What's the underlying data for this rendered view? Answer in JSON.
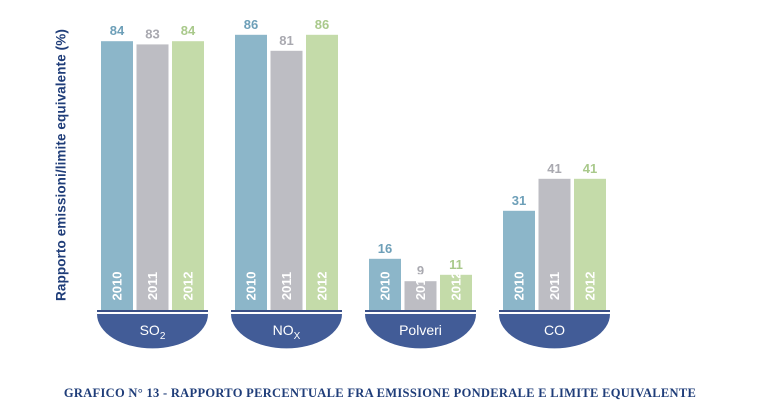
{
  "chart_data": {
    "type": "bar",
    "ylabel": "Rapporto emissioni/limite equivalente (%)",
    "title": "GRAFICO N° 13 - RAPPORTO PERCENTUALE FRA EMISSIONE PONDERALE E LIMITE EQUIVALENTE",
    "groups": [
      {
        "label": "SO",
        "sub": "2"
      },
      {
        "label": "NO",
        "sub": "X"
      },
      {
        "label": "Polveri",
        "sub": ""
      },
      {
        "label": "CO",
        "sub": ""
      }
    ],
    "series": [
      {
        "name": "2010",
        "color": "#8cb6c9",
        "label_color": "#6d9fb8",
        "values": [
          84,
          86,
          16,
          31
        ]
      },
      {
        "name": "2011",
        "color": "#bdbdc3",
        "label_color": "#a9a9b0",
        "values": [
          83,
          81,
          9,
          41
        ]
      },
      {
        "name": "2012",
        "color": "#c4dba9",
        "label_color": "#a9c98b",
        "values": [
          84,
          86,
          11,
          41
        ]
      }
    ],
    "group_color": "#425c97",
    "axis_color": "#3a4f86"
  }
}
